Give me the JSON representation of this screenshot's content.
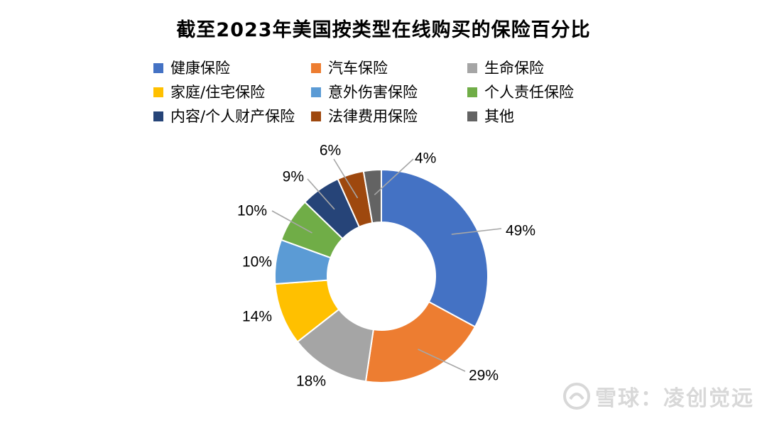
{
  "chart_data": {
    "type": "pie",
    "title": "截至2023年美国按类型在线购买的保险百分比",
    "categories": [
      "健康保险",
      "汽车保险",
      "生命保险",
      "家庭/住宅保险",
      "意外伤害保险",
      "个人责任保险",
      "内容/个人财产保险",
      "法律费用保险",
      "其他"
    ],
    "values": [
      49,
      29,
      18,
      14,
      10,
      10,
      9,
      6,
      4
    ],
    "labels": [
      "49%",
      "29%",
      "18%",
      "14%",
      "10%",
      "10%",
      "9%",
      "6%",
      "4%"
    ],
    "colors": [
      "#4472C4",
      "#ED7D31",
      "#A5A5A5",
      "#FFC000",
      "#5B9BD5",
      "#70AD47",
      "#264478",
      "#9E480E",
      "#636363"
    ],
    "legend_position": "top"
  },
  "watermark": {
    "text": "雪球：凌创觉远"
  }
}
